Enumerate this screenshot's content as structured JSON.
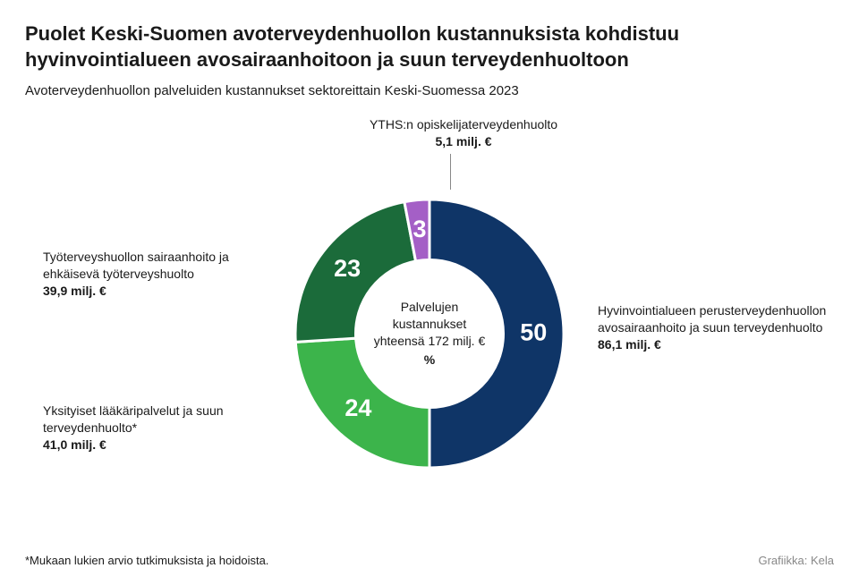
{
  "title": "Puolet Keski-Suomen avoterveydenhuollon kustannuksista kohdistuu hyvinvointialueen avosairaanhoitoon ja suun terveydenhuoltoon",
  "subtitle": "Avoterveydenhuollon palveluiden kustannukset sektoreittain Keski-Suomessa 2023",
  "centerLine1": "Palvelujen",
  "centerLine2": "kustannukset",
  "centerLine3": "yhteensä 172 milj. €",
  "centerUnit": "%",
  "footnote": "*Mukaan lukien arvio tutkimuksista ja hoidoista.",
  "credit": "Grafiikka: Kela",
  "chart": {
    "type": "donut",
    "background_color": "#ffffff",
    "inner_radius": 55,
    "outer_radius": 100,
    "label_font_size": 14,
    "pct_font_size": 18,
    "pct_font_weight": 700,
    "pct_color": "#ffffff",
    "slices": [
      {
        "pct": 50,
        "color": "#0f3567",
        "label": "Hyvinvointialueen perusterveydenhuollon avosairaanhoito ja suun terveydenhuolto",
        "value": "86,1 milj. €",
        "side": "right"
      },
      {
        "pct": 24,
        "color": "#3cb44b",
        "label": "Yksityiset lääkäripalvelut ja suun terveydenhuolto*",
        "value": "41,0 milj. €",
        "side": "left"
      },
      {
        "pct": 23,
        "color": "#1b6b3a",
        "label": "Työterveyshuollon sairaan­hoito ja ehkäisevä työterveyshuolto",
        "value": "39,9 milj. €",
        "side": "left"
      },
      {
        "pct": 3,
        "color": "#a45fc6",
        "label": "YTHS:n opiskelijaterveydenhuolto",
        "value": "5,1 milj. €",
        "side": "top"
      }
    ]
  }
}
